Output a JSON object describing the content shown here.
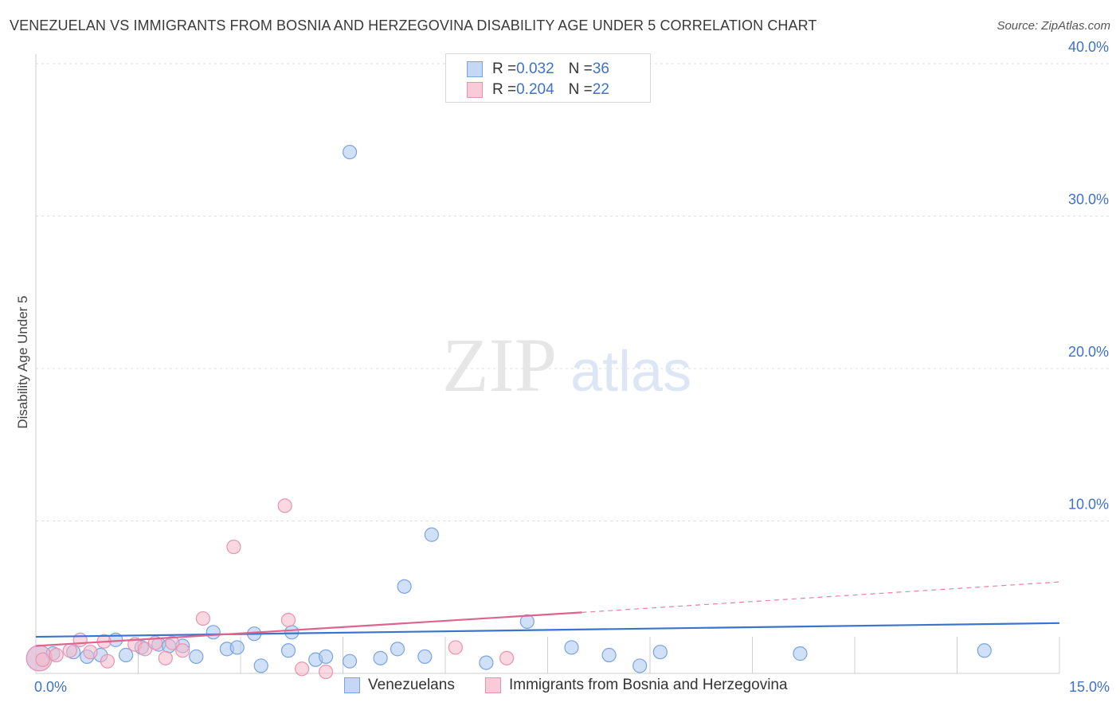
{
  "header": {
    "title": "VENEZUELAN VS IMMIGRANTS FROM BOSNIA AND HERZEGOVINA DISABILITY AGE UNDER 5 CORRELATION CHART",
    "source": "Source: ZipAtlas.com"
  },
  "watermark": {
    "zip": "ZIP",
    "atlas": "atlas"
  },
  "colors": {
    "blue_fill": "#aac6f0",
    "blue_stroke": "#7aa3e0",
    "blue_line": "#3a74cc",
    "pink_fill": "#f6b8cb",
    "pink_stroke": "#ea93b0",
    "pink_line": "#e0628f",
    "tick_label": "#3f72c6",
    "grid": "#dddddd"
  },
  "legend_top": {
    "rows": [
      {
        "r_label": "R = ",
        "r_value": "0.032",
        "n_label": "N = ",
        "n_value": "36"
      },
      {
        "r_label": "R = ",
        "r_value": "0.204",
        "n_label": "N = ",
        "n_value": "22"
      }
    ]
  },
  "legend_bottom": {
    "items": [
      {
        "label": "Venezuelans"
      },
      {
        "label": "Immigrants from Bosnia and Herzegovina"
      }
    ]
  },
  "chart_data": {
    "type": "scatter",
    "title": "VENEZUELAN VS IMMIGRANTS FROM BOSNIA AND HERZEGOVINA DISABILITY AGE UNDER 5 CORRELATION CHART",
    "xlabel": "",
    "ylabel": "Disability Age Under 5",
    "xlim": [
      0,
      15
    ],
    "ylim": [
      0,
      40
    ],
    "x_tick_labels": [
      "0.0%",
      "15.0%"
    ],
    "y_ticks": [
      10,
      20,
      30,
      40
    ],
    "y_tick_labels": [
      "10.0%",
      "20.0%",
      "30.0%",
      "40.0%"
    ],
    "grid": true,
    "series": [
      {
        "name": "Venezuelans",
        "r": 0.032,
        "n": 36,
        "trend": {
          "x0": 0,
          "y0": 2.4,
          "x1": 15,
          "y1": 3.3,
          "dashed_to": null
        },
        "points": [
          {
            "x": 0.05,
            "y": 1.0,
            "big": true
          },
          {
            "x": 0.25,
            "y": 1.3
          },
          {
            "x": 0.55,
            "y": 1.4
          },
          {
            "x": 0.75,
            "y": 1.1
          },
          {
            "x": 0.95,
            "y": 1.2
          },
          {
            "x": 1.17,
            "y": 2.2
          },
          {
            "x": 1.32,
            "y": 1.2
          },
          {
            "x": 1.55,
            "y": 1.7
          },
          {
            "x": 1.8,
            "y": 1.9
          },
          {
            "x": 1.95,
            "y": 1.8
          },
          {
            "x": 2.15,
            "y": 1.8
          },
          {
            "x": 2.35,
            "y": 1.1
          },
          {
            "x": 2.6,
            "y": 2.7
          },
          {
            "x": 2.8,
            "y": 1.6
          },
          {
            "x": 2.95,
            "y": 1.7
          },
          {
            "x": 3.2,
            "y": 2.6
          },
          {
            "x": 3.3,
            "y": 0.5
          },
          {
            "x": 3.7,
            "y": 1.5
          },
          {
            "x": 3.75,
            "y": 2.7
          },
          {
            "x": 4.1,
            "y": 0.9
          },
          {
            "x": 4.25,
            "y": 1.1
          },
          {
            "x": 4.6,
            "y": 0.8
          },
          {
            "x": 4.6,
            "y": 34.2
          },
          {
            "x": 5.05,
            "y": 1.0
          },
          {
            "x": 5.3,
            "y": 1.6
          },
          {
            "x": 5.4,
            "y": 5.7
          },
          {
            "x": 5.7,
            "y": 1.1
          },
          {
            "x": 5.8,
            "y": 9.1
          },
          {
            "x": 6.6,
            "y": 0.7
          },
          {
            "x": 7.2,
            "y": 3.4
          },
          {
            "x": 7.85,
            "y": 1.7
          },
          {
            "x": 8.4,
            "y": 1.2
          },
          {
            "x": 8.85,
            "y": 0.5
          },
          {
            "x": 9.15,
            "y": 1.4
          },
          {
            "x": 11.2,
            "y": 1.3
          },
          {
            "x": 13.9,
            "y": 1.5
          }
        ]
      },
      {
        "name": "Immigrants from Bosnia and Herzegovina",
        "r": 0.204,
        "n": 22,
        "trend": {
          "x0": 0,
          "y0": 1.8,
          "x1": 8.0,
          "y1": 4.0,
          "dashed_to": {
            "x": 15,
            "y": 6.0
          }
        },
        "points": [
          {
            "x": 0.05,
            "y": 1.0,
            "big": true
          },
          {
            "x": 0.3,
            "y": 1.2
          },
          {
            "x": 0.5,
            "y": 1.5
          },
          {
            "x": 0.65,
            "y": 2.2
          },
          {
            "x": 0.8,
            "y": 1.4
          },
          {
            "x": 1.05,
            "y": 0.8
          },
          {
            "x": 1.0,
            "y": 2.1
          },
          {
            "x": 1.45,
            "y": 1.9
          },
          {
            "x": 1.6,
            "y": 1.6
          },
          {
            "x": 1.75,
            "y": 2.0
          },
          {
            "x": 1.9,
            "y": 1.0
          },
          {
            "x": 2.0,
            "y": 2.0
          },
          {
            "x": 2.15,
            "y": 1.5
          },
          {
            "x": 2.45,
            "y": 3.6
          },
          {
            "x": 2.9,
            "y": 8.3
          },
          {
            "x": 3.65,
            "y": 11.0
          },
          {
            "x": 3.7,
            "y": 3.5
          },
          {
            "x": 3.9,
            "y": 0.3
          },
          {
            "x": 4.25,
            "y": 0.1
          },
          {
            "x": 6.15,
            "y": 1.7
          },
          {
            "x": 6.9,
            "y": 1.0
          },
          {
            "x": 0.1,
            "y": 0.9
          }
        ]
      }
    ]
  }
}
